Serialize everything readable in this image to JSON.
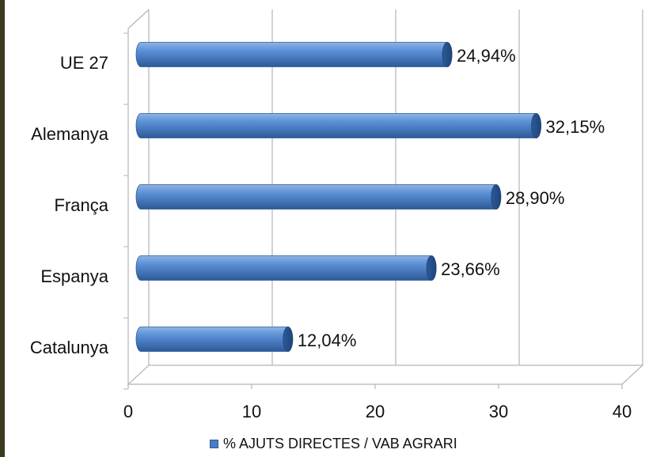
{
  "chart_data": {
    "type": "bar",
    "orientation": "horizontal",
    "categories": [
      "UE 27",
      "Alemanya",
      "França",
      "Espanya",
      "Catalunya"
    ],
    "series": [
      {
        "name": "% AJUTS DIRECTES / VAB AGRARI",
        "values": [
          24.94,
          32.15,
          28.9,
          23.66,
          12.04
        ],
        "labels": [
          "24,94%",
          "32,15%",
          "28,90%",
          "23,66%",
          "12,04%"
        ]
      }
    ],
    "xlim": [
      0,
      40
    ],
    "xticks": [
      0,
      10,
      20,
      30,
      40
    ],
    "grid": true,
    "legend_position": "bottom",
    "colors": {
      "bar": "#4a7cc2",
      "bar_dark": "#2d5a98",
      "bar_light": "#8fb4e6",
      "grid": "#b5b5b5"
    }
  }
}
